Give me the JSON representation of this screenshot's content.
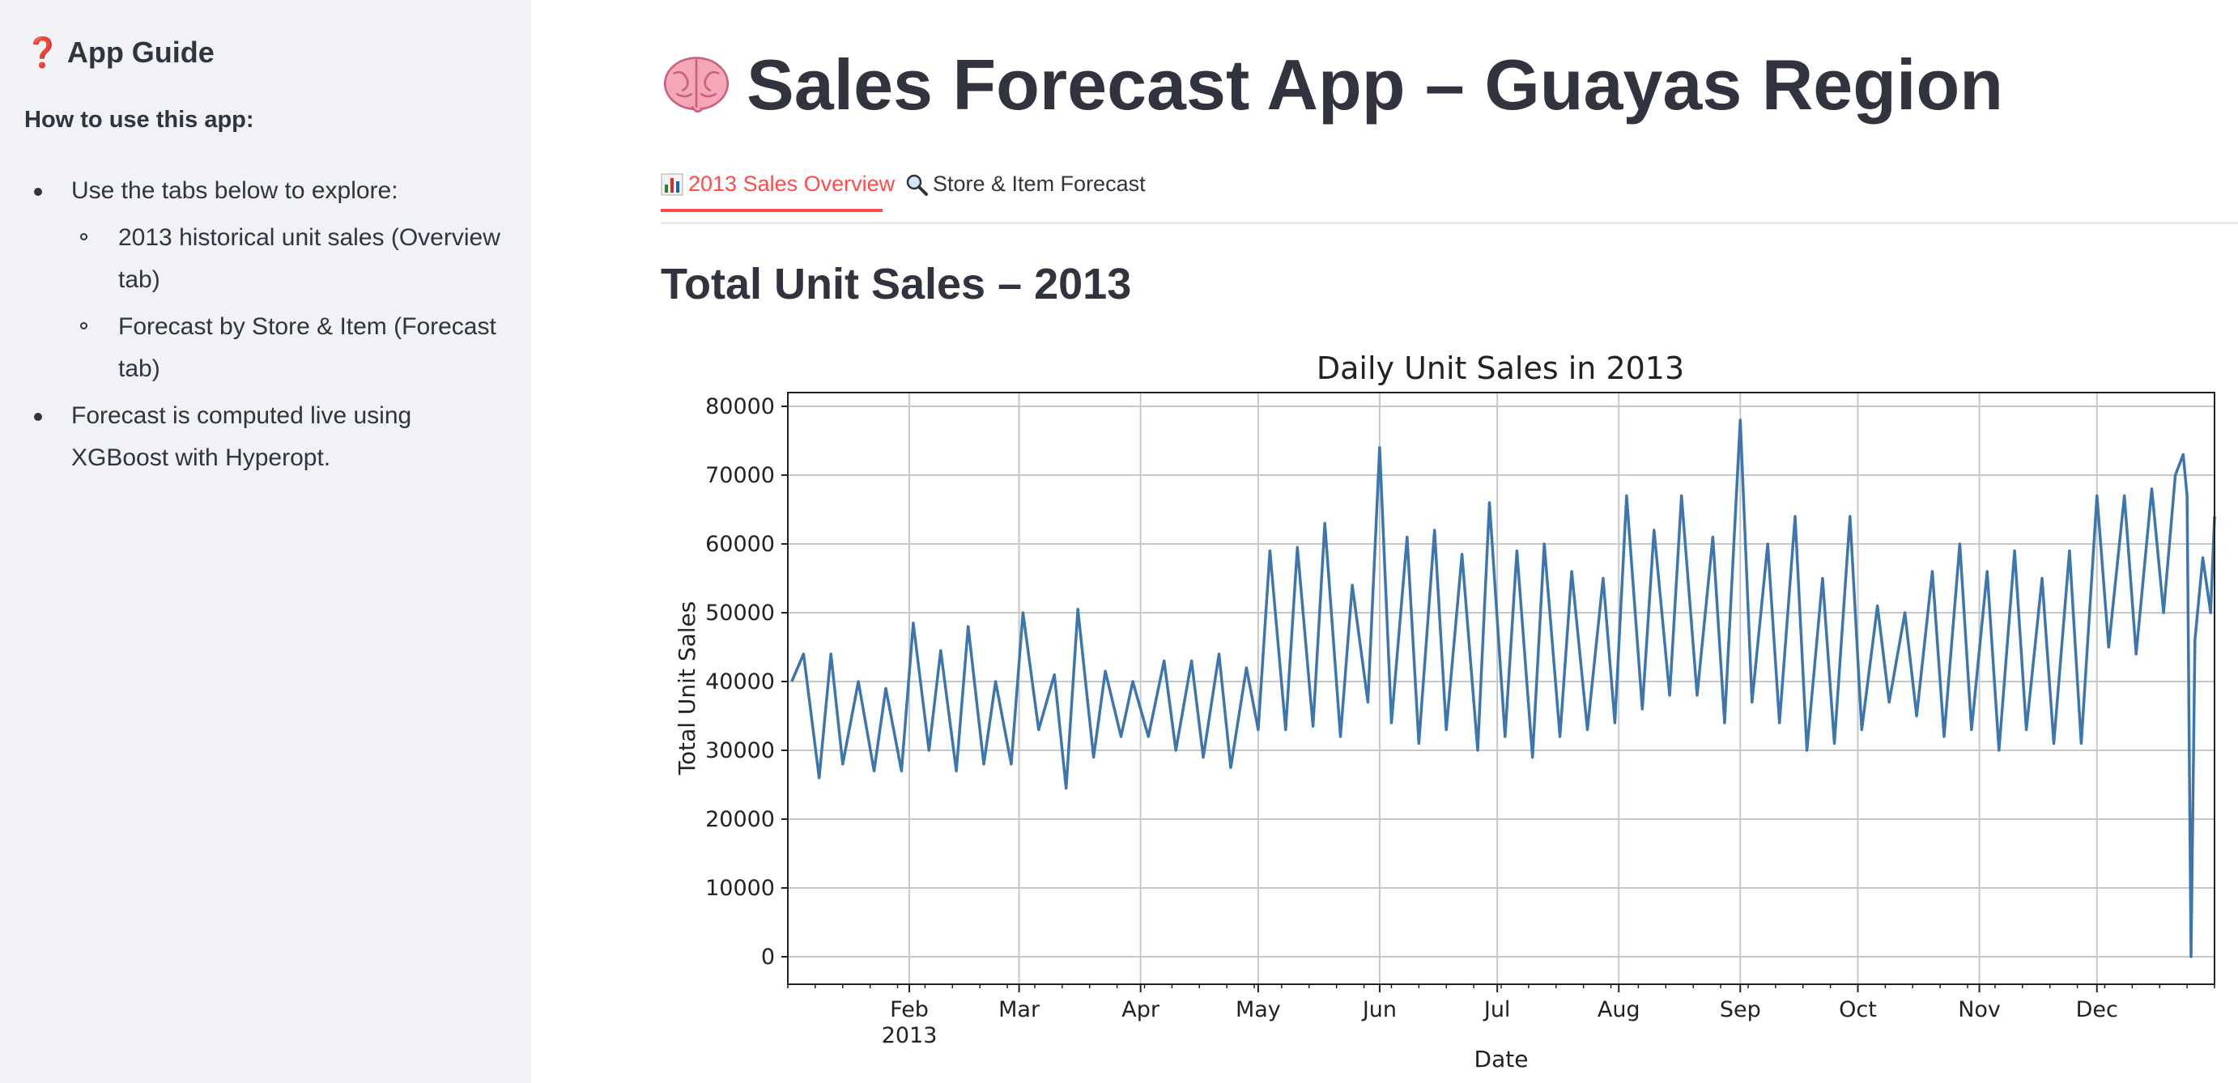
{
  "sidebar": {
    "title": "App Guide",
    "subtitle": "How to use this app:",
    "items": [
      {
        "text": "Use the tabs below to explore:",
        "level": 1
      },
      {
        "text": "2013 historical unit sales (Overview tab)",
        "level": 2
      },
      {
        "text": "Forecast by Store & Item (Forecast tab)",
        "level": 2
      },
      {
        "text": "Forecast is computed live using XGBoost with Hyperopt.",
        "level": 1
      }
    ]
  },
  "header": {
    "title": "Sales Forecast App – Guayas Region"
  },
  "tabs": [
    {
      "label": "2013 Sales Overview",
      "icon": "bar-chart-icon",
      "active": true
    },
    {
      "label": "Store & Item Forecast",
      "icon": "magnifier-icon",
      "active": false
    }
  ],
  "section": {
    "title": "Total Unit Sales – 2013"
  },
  "colors": {
    "accent": "#ff4b4b",
    "line": "#3d76ad",
    "sidebar_bg": "#f0f2f6",
    "text": "#31333f"
  },
  "chart_data": {
    "type": "line",
    "title": "Daily Unit Sales in 2013",
    "xlabel": "Date",
    "ylabel": "Total Unit Sales",
    "ylim": [
      -4000,
      82000
    ],
    "yticks": [
      0,
      10000,
      20000,
      30000,
      40000,
      50000,
      60000,
      70000,
      80000
    ],
    "xlim": [
      "2013-01-01",
      "2013-12-31"
    ],
    "xticks": [
      {
        "date": "2013-02-01",
        "label": "Feb",
        "sublabel": "2013"
      },
      {
        "date": "2013-03-01",
        "label": "Mar"
      },
      {
        "date": "2013-04-01",
        "label": "Apr"
      },
      {
        "date": "2013-05-01",
        "label": "May"
      },
      {
        "date": "2013-06-01",
        "label": "Jun"
      },
      {
        "date": "2013-07-01",
        "label": "Jul"
      },
      {
        "date": "2013-08-01",
        "label": "Aug"
      },
      {
        "date": "2013-09-01",
        "label": "Sep"
      },
      {
        "date": "2013-10-01",
        "label": "Oct"
      },
      {
        "date": "2013-11-01",
        "label": "Nov"
      },
      {
        "date": "2013-12-01",
        "label": "Dec"
      }
    ],
    "grid": true,
    "series": [
      {
        "x": [
          "2013-01-02",
          "2013-01-05",
          "2013-01-09",
          "2013-01-12",
          "2013-01-15",
          "2013-01-19",
          "2013-01-23",
          "2013-01-26",
          "2013-01-30",
          "2013-02-02",
          "2013-02-06",
          "2013-02-09",
          "2013-02-13",
          "2013-02-16",
          "2013-02-20",
          "2013-02-23",
          "2013-02-27",
          "2013-03-02",
          "2013-03-06",
          "2013-03-10",
          "2013-03-13",
          "2013-03-16",
          "2013-03-20",
          "2013-03-23",
          "2013-03-27",
          "2013-03-30",
          "2013-04-03",
          "2013-04-07",
          "2013-04-10",
          "2013-04-14",
          "2013-04-17",
          "2013-04-21",
          "2013-04-24",
          "2013-04-28",
          "2013-05-01",
          "2013-05-04",
          "2013-05-08",
          "2013-05-11",
          "2013-05-15",
          "2013-05-18",
          "2013-05-22",
          "2013-05-25",
          "2013-05-29",
          "2013-06-01",
          "2013-06-04",
          "2013-06-08",
          "2013-06-11",
          "2013-06-15",
          "2013-06-18",
          "2013-06-22",
          "2013-06-26",
          "2013-06-29",
          "2013-07-03",
          "2013-07-06",
          "2013-07-10",
          "2013-07-13",
          "2013-07-17",
          "2013-07-20",
          "2013-07-24",
          "2013-07-28",
          "2013-07-31",
          "2013-08-03",
          "2013-08-07",
          "2013-08-10",
          "2013-08-14",
          "2013-08-17",
          "2013-08-21",
          "2013-08-25",
          "2013-08-28",
          "2013-09-01",
          "2013-09-04",
          "2013-09-08",
          "2013-09-11",
          "2013-09-15",
          "2013-09-18",
          "2013-09-22",
          "2013-09-25",
          "2013-09-29",
          "2013-10-02",
          "2013-10-06",
          "2013-10-09",
          "2013-10-13",
          "2013-10-16",
          "2013-10-20",
          "2013-10-23",
          "2013-10-27",
          "2013-10-30",
          "2013-11-03",
          "2013-11-06",
          "2013-11-10",
          "2013-11-13",
          "2013-11-17",
          "2013-11-20",
          "2013-11-24",
          "2013-11-27",
          "2013-12-01",
          "2013-12-04",
          "2013-12-08",
          "2013-12-11",
          "2013-12-15",
          "2013-12-18",
          "2013-12-21",
          "2013-12-23",
          "2013-12-24",
          "2013-12-25",
          "2013-12-26",
          "2013-12-28",
          "2013-12-30",
          "2013-12-31"
        ],
        "y": [
          40000,
          44000,
          26000,
          44000,
          28000,
          40000,
          27000,
          39000,
          27000,
          48500,
          30000,
          44500,
          27000,
          48000,
          28000,
          40000,
          28000,
          50000,
          33000,
          41000,
          24500,
          50500,
          29000,
          41500,
          32000,
          40000,
          32000,
          43000,
          30000,
          43000,
          29000,
          44000,
          27500,
          42000,
          33000,
          59000,
          33000,
          59500,
          33500,
          63000,
          32000,
          54000,
          37000,
          74000,
          34000,
          61000,
          31000,
          62000,
          33000,
          58500,
          30000,
          66000,
          32000,
          59000,
          29000,
          60000,
          32000,
          56000,
          33000,
          55000,
          34000,
          67000,
          36000,
          62000,
          38000,
          67000,
          38000,
          61000,
          34000,
          78000,
          37000,
          60000,
          34000,
          64000,
          30000,
          55000,
          31000,
          64000,
          33000,
          51000,
          37000,
          50000,
          35000,
          56000,
          32000,
          60000,
          33000,
          56000,
          30000,
          59000,
          33000,
          55000,
          31000,
          59000,
          31000,
          67000,
          45000,
          67000,
          44000,
          68000,
          50000,
          70000,
          73000,
          67000,
          0,
          46000,
          58000,
          50000,
          64000
        ]
      }
    ]
  }
}
